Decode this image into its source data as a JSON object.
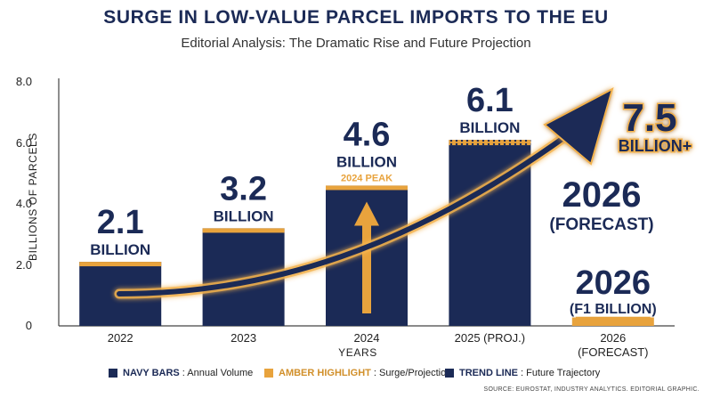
{
  "title": "SURGE IN LOW-VALUE PARCEL IMPORTS TO THE EU",
  "subtitle": "Editorial Analysis: The Dramatic Rise and Future Projection",
  "colors": {
    "navy": "#1b2a56",
    "amber": "#e8a33d",
    "trend": "#1b2a56",
    "glow": "#f3b24d"
  },
  "chart_data": {
    "type": "bar",
    "title": "SURGE IN LOW-VALUE PARCEL IMPORTS TO THE EU",
    "xlabel": "YEARS",
    "ylabel": "BILLIONS OF PARCELS",
    "ylim": [
      0,
      8
    ],
    "yticks": [
      "0",
      "2.0",
      "4.0",
      "6.0",
      "8.0"
    ],
    "grid": false,
    "categories": [
      "2022",
      "2023",
      "2024",
      "2025 (PROJ.)",
      "2026 (FORECAST)"
    ],
    "values": [
      2.1,
      3.2,
      4.6,
      6.1,
      0.3
    ],
    "value_labels": [
      {
        "big": "2.1",
        "small": "BILLION"
      },
      {
        "big": "3.2",
        "small": "BILLION"
      },
      {
        "big": "4.6",
        "small": "BILLION",
        "note": "2024 PEAK"
      },
      {
        "big": "6.1",
        "small": "BILLION"
      },
      {
        "big": "2026",
        "small": "(F1 BILLION)"
      }
    ],
    "trend": {
      "label_big": "7.5",
      "label_small": "BILLION+",
      "forecast_big": "2026",
      "forecast_small": "(FORECAST)"
    },
    "legend_position": "bottom"
  },
  "legend": [
    {
      "bold": "NAVY BARS",
      "text": ": Annual Volume",
      "color": "#1b2a56",
      "bold_color": "#1b2a56"
    },
    {
      "bold": "AMBER HIGHLIGHT",
      "text": ": Surge/Projection",
      "color": "#e8a33d",
      "bold_color": "#d18f2a"
    },
    {
      "bold": "TREND LINE",
      "text": ": Future Trajectory",
      "color": "#1b2a56",
      "bold_color": "#1b2a56"
    }
  ],
  "source": "SOURCE: EUROSTAT, INDUSTRY ANALYTICS. EDITORIAL GRAPHIC."
}
